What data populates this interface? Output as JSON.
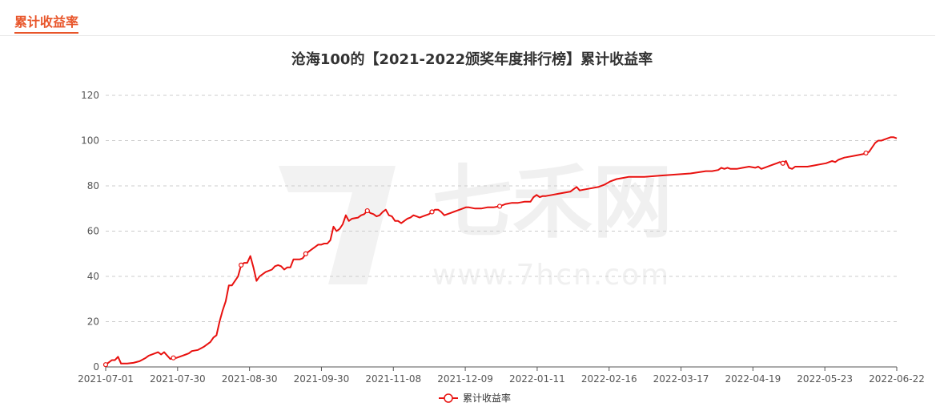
{
  "section": {
    "title": "累计收益率"
  },
  "watermark": {
    "brand": "七禾网",
    "url": "www.7hcn.com"
  },
  "chart_data": {
    "type": "line",
    "title": "沧海100的【2021-2022颁奖年度排行榜】累计收益率",
    "ylim": [
      0,
      120
    ],
    "yticks": [
      0,
      20,
      40,
      60,
      80,
      100,
      120
    ],
    "xticks": [
      "2021-07-01",
      "2021-07-30",
      "2021-08-30",
      "2021-09-30",
      "2021-11-08",
      "2021-12-09",
      "2022-01-11",
      "2022-02-16",
      "2022-03-17",
      "2022-04-19",
      "2022-05-23",
      "2022-06-22"
    ],
    "grid": "horizontal dashed",
    "legend": "bottom-center",
    "series": [
      {
        "name": "累计收益率",
        "color": "#e8110f",
        "points": [
          [
            0,
            1
          ],
          [
            1,
            2
          ],
          [
            2,
            3
          ],
          [
            3,
            3
          ],
          [
            4,
            4.5
          ],
          [
            5,
            1.5
          ],
          [
            7,
            1.5
          ],
          [
            9,
            1.8
          ],
          [
            11,
            2.5
          ],
          [
            13,
            4
          ],
          [
            14,
            5
          ],
          [
            16,
            6
          ],
          [
            17,
            6.5
          ],
          [
            18,
            5.5
          ],
          [
            19,
            6.5
          ],
          [
            20,
            5
          ],
          [
            21,
            3.5
          ],
          [
            22,
            4
          ],
          [
            23,
            4
          ],
          [
            24,
            4.5
          ],
          [
            25,
            5
          ],
          [
            26,
            5.5
          ],
          [
            27,
            6
          ],
          [
            28,
            7
          ],
          [
            30,
            7.5
          ],
          [
            32,
            9
          ],
          [
            34,
            11
          ],
          [
            35,
            13
          ],
          [
            36,
            14
          ],
          [
            37,
            20
          ],
          [
            38,
            25
          ],
          [
            39,
            29
          ],
          [
            40,
            36
          ],
          [
            41,
            36
          ],
          [
            42,
            38
          ],
          [
            43,
            40
          ],
          [
            44,
            45
          ],
          [
            45,
            46
          ],
          [
            46,
            46
          ],
          [
            47,
            49
          ],
          [
            48,
            44
          ],
          [
            49,
            38
          ],
          [
            50,
            40
          ],
          [
            51,
            41
          ],
          [
            52,
            42
          ],
          [
            54,
            43
          ],
          [
            55,
            44.5
          ],
          [
            56,
            45
          ],
          [
            57,
            44.5
          ],
          [
            58,
            43
          ],
          [
            59,
            44
          ],
          [
            60,
            44
          ],
          [
            61,
            47.5
          ],
          [
            62,
            47.5
          ],
          [
            63,
            47.5
          ],
          [
            64,
            48
          ],
          [
            65,
            50
          ],
          [
            66,
            51
          ],
          [
            67,
            52
          ],
          [
            68,
            53
          ],
          [
            69,
            54
          ],
          [
            70,
            54
          ],
          [
            71,
            54.5
          ],
          [
            72,
            54.5
          ],
          [
            73,
            56
          ],
          [
            74,
            62
          ],
          [
            75,
            60
          ],
          [
            76,
            61
          ],
          [
            77,
            63
          ],
          [
            78,
            67
          ],
          [
            79,
            64.5
          ],
          [
            80,
            65.5
          ],
          [
            82,
            66
          ],
          [
            83,
            67
          ],
          [
            84,
            67.5
          ],
          [
            85,
            69
          ],
          [
            86,
            68
          ],
          [
            87,
            67.5
          ],
          [
            88,
            66.5
          ],
          [
            89,
            67
          ],
          [
            90,
            68.5
          ],
          [
            91,
            69.5
          ],
          [
            92,
            67
          ],
          [
            93,
            66.5
          ],
          [
            94,
            64.5
          ],
          [
            95,
            64.5
          ],
          [
            96,
            63.5
          ],
          [
            97,
            64.5
          ],
          [
            98,
            65.5
          ],
          [
            99,
            66
          ],
          [
            100,
            67
          ],
          [
            101,
            66.5
          ],
          [
            102,
            66
          ],
          [
            103,
            66.5
          ],
          [
            104,
            67
          ],
          [
            105,
            67.5
          ],
          [
            106,
            68.5
          ],
          [
            107,
            69.5
          ],
          [
            108,
            69.5
          ],
          [
            109,
            68.5
          ],
          [
            110,
            67
          ],
          [
            111,
            67.5
          ],
          [
            112,
            68
          ],
          [
            113,
            68.5
          ],
          [
            114,
            69
          ],
          [
            115,
            69.5
          ],
          [
            116,
            70
          ],
          [
            117,
            70.5
          ],
          [
            118,
            70.5
          ],
          [
            120,
            70
          ],
          [
            122,
            70
          ],
          [
            124,
            70.5
          ],
          [
            126,
            70.5
          ],
          [
            128,
            71
          ],
          [
            130,
            72
          ],
          [
            132,
            72.5
          ],
          [
            134,
            72.5
          ],
          [
            136,
            73
          ],
          [
            138,
            73
          ],
          [
            139,
            75
          ],
          [
            140,
            76
          ],
          [
            141,
            75
          ],
          [
            142,
            75.5
          ],
          [
            143,
            75.5
          ],
          [
            145,
            76
          ],
          [
            147,
            76.5
          ],
          [
            149,
            77
          ],
          [
            151,
            77.5
          ],
          [
            152,
            78.5
          ],
          [
            153,
            79.5
          ],
          [
            154,
            78
          ],
          [
            156,
            78.5
          ],
          [
            158,
            79
          ],
          [
            160,
            79.5
          ],
          [
            162,
            80.5
          ],
          [
            164,
            82
          ],
          [
            166,
            83
          ],
          [
            168,
            83.5
          ],
          [
            170,
            84
          ],
          [
            175,
            84
          ],
          [
            180,
            84.5
          ],
          [
            185,
            85
          ],
          [
            190,
            85.5
          ],
          [
            195,
            86.5
          ],
          [
            197,
            86.5
          ],
          [
            199,
            87
          ],
          [
            200,
            88
          ],
          [
            201,
            87.5
          ],
          [
            202,
            88
          ],
          [
            203,
            87.5
          ],
          [
            205,
            87.5
          ],
          [
            207,
            88
          ],
          [
            209,
            88.5
          ],
          [
            211,
            88
          ],
          [
            212,
            88.5
          ],
          [
            213,
            87.5
          ],
          [
            214,
            88
          ],
          [
            216,
            89
          ],
          [
            217,
            89.5
          ],
          [
            218,
            90
          ],
          [
            219,
            90.5
          ],
          [
            220,
            90
          ],
          [
            221,
            91
          ],
          [
            222,
            88
          ],
          [
            223,
            87.5
          ],
          [
            224,
            88.5
          ],
          [
            226,
            88.5
          ],
          [
            228,
            88.5
          ],
          [
            230,
            89
          ],
          [
            232,
            89.5
          ],
          [
            234,
            90
          ],
          [
            236,
            91
          ],
          [
            237,
            90.5
          ],
          [
            238,
            91.5
          ],
          [
            240,
            92.5
          ],
          [
            242,
            93
          ],
          [
            244,
            93.5
          ],
          [
            246,
            94
          ],
          [
            247,
            94.5
          ],
          [
            248,
            95
          ],
          [
            249,
            97
          ],
          [
            250,
            99
          ],
          [
            251,
            100
          ],
          [
            252,
            100
          ],
          [
            253,
            100.5
          ],
          [
            254,
            101
          ],
          [
            255,
            101.5
          ],
          [
            256,
            101.5
          ],
          [
            257,
            101
          ]
        ],
        "markers": [
          0,
          22,
          44,
          65,
          85,
          106,
          128,
          150,
          172,
          194,
          220,
          247
        ]
      }
    ]
  }
}
